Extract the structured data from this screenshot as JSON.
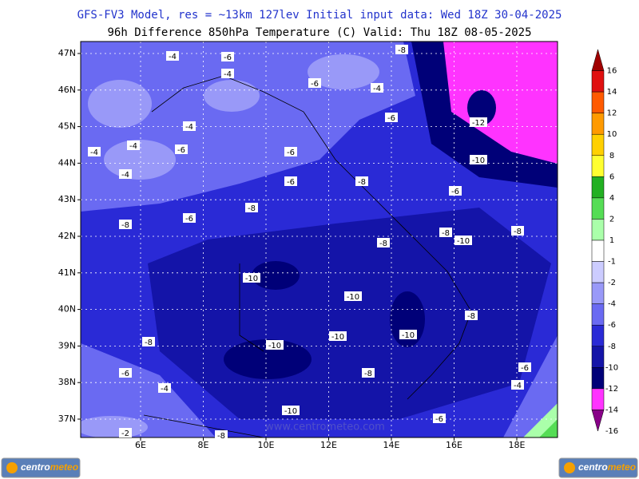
{
  "header": {
    "title": "GFS-FV3 Model, res = ~13km 127lev   Initial input data: Wed 18Z 30-04-2025",
    "subtitle": "96h Difference 850hPa Temperature (C)  Valid: Thu 18Z 08-05-2025"
  },
  "map": {
    "lat_labels": [
      "47N",
      "46N",
      "45N",
      "44N",
      "43N",
      "42N",
      "41N",
      "40N",
      "39N",
      "38N",
      "37N"
    ],
    "lon_labels": [
      "6E",
      "8E",
      "10E",
      "12E",
      "14E",
      "16E",
      "18E"
    ],
    "contour_labels": [
      "-4",
      "-6",
      "-4",
      "-6",
      "-4",
      "-8",
      "-4",
      "-6",
      "-12",
      "-4",
      "-4",
      "-6",
      "-6",
      "-10",
      "-4",
      "-6",
      "-8",
      "-6",
      "-6",
      "-8",
      "-8",
      "-8",
      "-10",
      "-8",
      "-8",
      "-10",
      "-10",
      "-8",
      "-10",
      "-10",
      "-8",
      "-10",
      "-6",
      "-8",
      "-6",
      "-4",
      "-4",
      "-10",
      "-6",
      "-2",
      "-8"
    ],
    "watermark": "www.centrometeo.com"
  },
  "colorbar": {
    "labels": [
      "16",
      "14",
      "12",
      "10",
      "8",
      "6",
      "4",
      "2",
      "1",
      "-1",
      "-2",
      "-4",
      "-6",
      "-8",
      "-10",
      "-12",
      "-14",
      "-16"
    ],
    "colors": [
      "#a00000",
      "#e01010",
      "#ff5a00",
      "#ff9a00",
      "#ffd000",
      "#ffff30",
      "#22b022",
      "#55dd55",
      "#aaffaa",
      "#ffffff",
      "#ccccff",
      "#9999f8",
      "#6a6af2",
      "#2a2ad6",
      "#1414a8",
      "#000078",
      "#ff33ff",
      "#880088"
    ]
  },
  "logo": [
    "centro",
    "meteo"
  ]
}
